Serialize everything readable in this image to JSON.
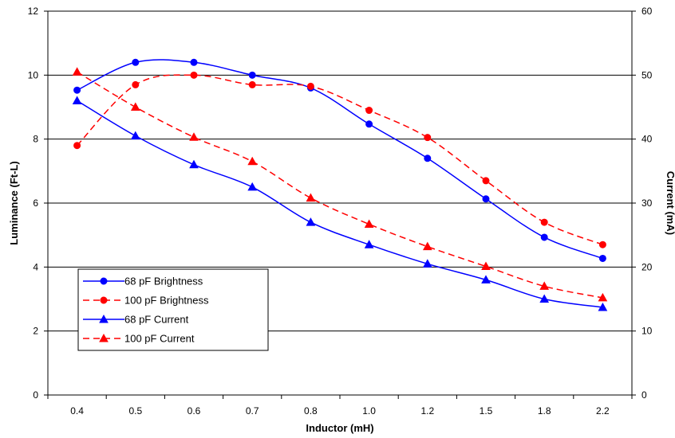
{
  "chart_data": {
    "type": "line",
    "categories": [
      "0.4",
      "0.5",
      "0.6",
      "0.7",
      "0.8",
      "1.0",
      "1.2",
      "1.5",
      "1.8",
      "2.2"
    ],
    "xlabel": "Inductor (mH)",
    "ylabel": "Luminance (Ft-L)",
    "y2label": "Current (mA)",
    "ylim": [
      0,
      12
    ],
    "y2lim": [
      0,
      60
    ],
    "yticks": [
      "0",
      "2",
      "4",
      "6",
      "8",
      "10",
      "12"
    ],
    "y2ticks": [
      "0",
      "10",
      "20",
      "30",
      "40",
      "50",
      "60"
    ],
    "grid": "horizontal",
    "legend_position": "lower-left",
    "series": [
      {
        "name": "68 pF  Brightness",
        "axis": "left",
        "color": "#0000ff",
        "line_style": "solid",
        "marker": "circle",
        "values": [
          9.53,
          10.4,
          10.4,
          10.0,
          9.6,
          8.47,
          7.4,
          6.13,
          4.93,
          4.27
        ]
      },
      {
        "name": "100 pF  Brightness",
        "axis": "left",
        "color": "#ff0000",
        "line_style": "dashed",
        "marker": "circle",
        "values": [
          7.8,
          9.7,
          10.0,
          9.7,
          9.65,
          8.9,
          8.05,
          6.7,
          5.4,
          4.7
        ]
      },
      {
        "name": "68 pF  Current",
        "axis": "right",
        "color": "#0000ff",
        "line_style": "solid",
        "marker": "triangle",
        "values": [
          46,
          40.5,
          36,
          32.5,
          27,
          23.5,
          20.5,
          18,
          15,
          13.7
        ]
      },
      {
        "name": "100 pF  Current",
        "axis": "right",
        "color": "#ff0000",
        "line_style": "dashed",
        "marker": "triangle",
        "values": [
          50.5,
          45,
          40.3,
          36.5,
          30.8,
          26.7,
          23.2,
          20.1,
          17,
          15.2
        ]
      }
    ]
  }
}
